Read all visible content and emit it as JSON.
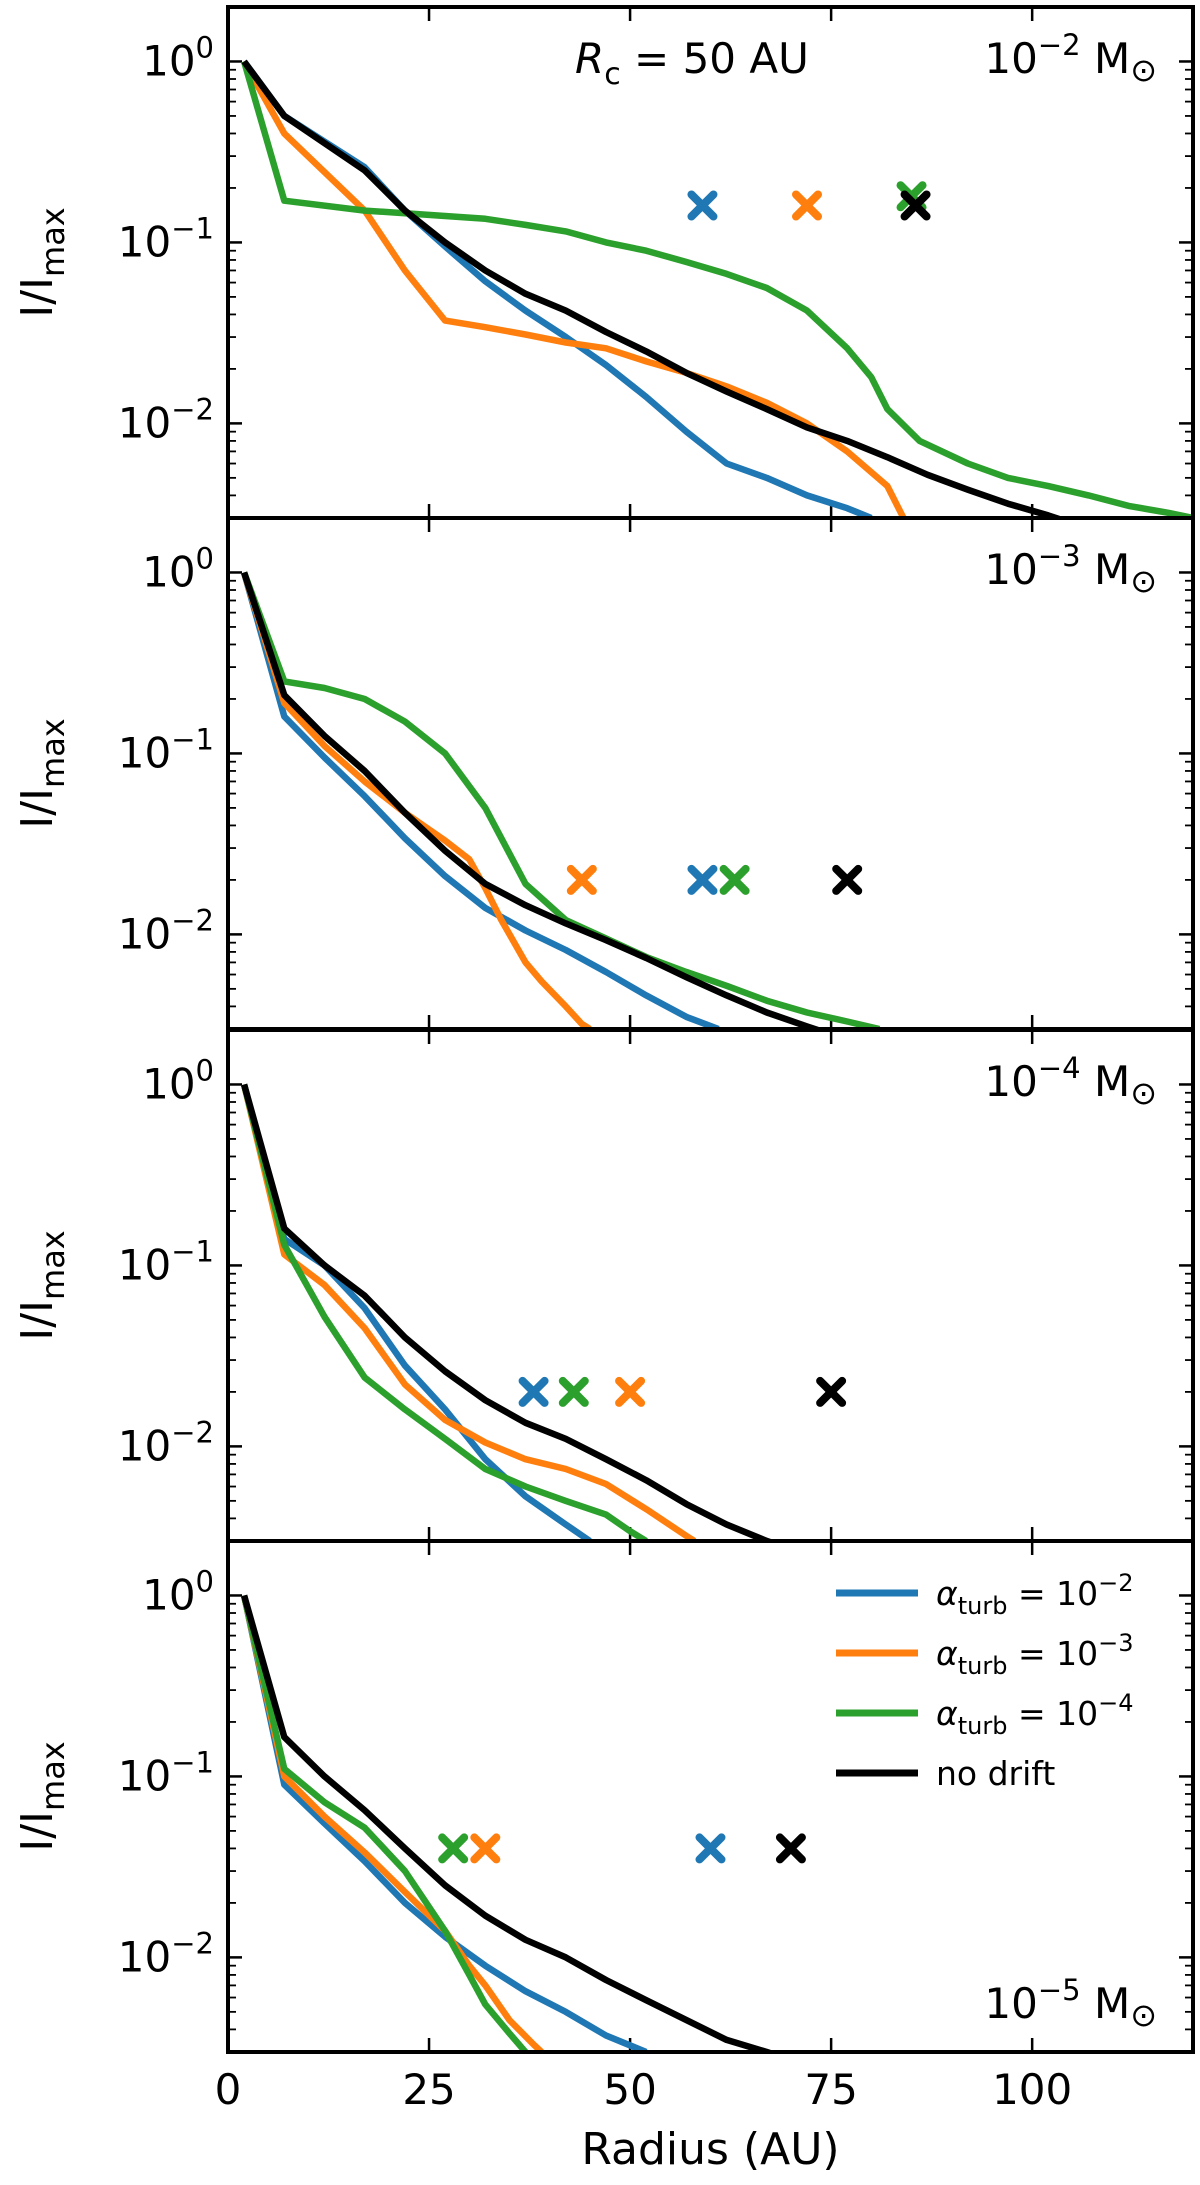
{
  "chart_data": {
    "type": "line",
    "shared_x": {
      "label": "Radius (AU)",
      "range": [
        0,
        120
      ],
      "ticks": [
        0,
        25,
        50,
        75,
        100
      ],
      "tick_labels": [
        "0",
        "25",
        "50",
        "75",
        "100"
      ]
    },
    "ylabel_main": "I/I",
    "ylabel_sub": "max",
    "yscale": "log",
    "ylim": [
      0.003,
      2
    ],
    "y_ticks": [
      {
        "value": 1,
        "base": "10",
        "exp": "0"
      },
      {
        "value": 0.1,
        "base": "10",
        "exp": "−1"
      },
      {
        "value": 0.01,
        "base": "10",
        "exp": "−2"
      }
    ],
    "annotation": {
      "prefix": "R",
      "sub": "c",
      "suffix": " = 50 AU"
    },
    "legend": {
      "location": "upper right (bottom panel)",
      "entries": [
        {
          "name_main": "α",
          "name_sub": "turb",
          "name_rest": " = 10",
          "name_sup": "−2",
          "color": "#1f77b4"
        },
        {
          "name_main": "α",
          "name_sub": "turb",
          "name_rest": " = 10",
          "name_sup": "−3",
          "color": "#ff7f0e"
        },
        {
          "name_main": "α",
          "name_sub": "turb",
          "name_rest": " = 10",
          "name_sup": "−4",
          "color": "#2ca02c"
        },
        {
          "name_main": "no drift",
          "name_sub": "",
          "name_rest": "",
          "name_sup": "",
          "color": "#000000"
        }
      ]
    },
    "panels": [
      {
        "mass_base": "10",
        "mass_exp": "−2",
        "mass_unit": " M",
        "mass_sym": "⊙",
        "label_location": "top-right",
        "series": [
          {
            "name": "alpha_turb = 1e-2",
            "color": "#1f77b4",
            "x": [
              2,
              7,
              17,
              22,
              27,
              32,
              37,
              42,
              47,
              52,
              57,
              62,
              67,
              72,
              77,
              80
            ],
            "y": [
              1,
              0.5,
              0.26,
              0.15,
              0.095,
              0.061,
              0.042,
              0.03,
              0.021,
              0.014,
              0.009,
              0.006,
              0.005,
              0.004,
              0.0034,
              0.003
            ]
          },
          {
            "name": "alpha_turb = 1e-3",
            "color": "#ff7f0e",
            "x": [
              2,
              7,
              17,
              22,
              27,
              32,
              37,
              42,
              47,
              52,
              57,
              62,
              67,
              72,
              77,
              82,
              84
            ],
            "y": [
              1,
              0.4,
              0.15,
              0.07,
              0.037,
              0.034,
              0.031,
              0.028,
              0.026,
              0.022,
              0.019,
              0.016,
              0.013,
              0.01,
              0.007,
              0.0045,
              0.003
            ]
          },
          {
            "name": "alpha_turb = 1e-4",
            "color": "#2ca02c",
            "x": [
              2,
              7,
              17,
              22,
              27,
              32,
              37,
              42,
              47,
              52,
              57,
              62,
              67,
              72,
              77,
              80,
              82,
              86,
              92,
              97,
              102,
              107,
              112,
              117,
              120
            ],
            "y": [
              1,
              0.17,
              0.15,
              0.145,
              0.14,
              0.135,
              0.125,
              0.115,
              0.1,
              0.09,
              0.078,
              0.067,
              0.056,
              0.042,
              0.026,
              0.018,
              0.012,
              0.008,
              0.006,
              0.005,
              0.0045,
              0.004,
              0.0035,
              0.0032,
              0.003
            ]
          },
          {
            "name": "no drift",
            "color": "#000000",
            "x": [
              2,
              7,
              17,
              22,
              27,
              32,
              37,
              42,
              47,
              52,
              57,
              62,
              67,
              72,
              77,
              82,
              87,
              92,
              97,
              102,
              105
            ],
            "y": [
              1,
              0.5,
              0.25,
              0.15,
              0.1,
              0.07,
              0.052,
              0.042,
              0.032,
              0.025,
              0.019,
              0.015,
              0.012,
              0.0095,
              0.008,
              0.0065,
              0.0052,
              0.0043,
              0.0036,
              0.0031,
              0.0028
            ]
          }
        ],
        "markers": [
          {
            "x": 59,
            "y": 0.16,
            "color": "#1f77b4"
          },
          {
            "x": 72,
            "y": 0.16,
            "color": "#ff7f0e"
          },
          {
            "x": 85,
            "y": 0.18,
            "color": "#2ca02c"
          },
          {
            "x": 85.5,
            "y": 0.16,
            "color": "#000000"
          }
        ]
      },
      {
        "mass_base": "10",
        "mass_exp": "−3",
        "mass_unit": " M",
        "mass_sym": "⊙",
        "label_location": "top-right",
        "series": [
          {
            "name": "alpha_turb = 1e-2",
            "color": "#1f77b4",
            "x": [
              2,
              7,
              12,
              17,
              22,
              27,
              32,
              37,
              42,
              47,
              52,
              57,
              61
            ],
            "y": [
              1,
              0.16,
              0.095,
              0.058,
              0.034,
              0.021,
              0.014,
              0.0105,
              0.0082,
              0.0062,
              0.0046,
              0.0035,
              0.003
            ]
          },
          {
            "name": "alpha_turb = 1e-3",
            "color": "#ff7f0e",
            "x": [
              2,
              7,
              12,
              17,
              22,
              27,
              30,
              32,
              34,
              37,
              39,
              42,
              44,
              45
            ],
            "y": [
              1,
              0.19,
              0.11,
              0.07,
              0.047,
              0.033,
              0.026,
              0.018,
              0.012,
              0.007,
              0.0055,
              0.004,
              0.0032,
              0.003
            ]
          },
          {
            "name": "alpha_turb = 1e-4",
            "color": "#2ca02c",
            "x": [
              2,
              7,
              12,
              17,
              22,
              27,
              32,
              37,
              42,
              47,
              52,
              57,
              62,
              67,
              72,
              77,
              81
            ],
            "y": [
              1,
              0.25,
              0.23,
              0.2,
              0.15,
              0.1,
              0.05,
              0.019,
              0.012,
              0.0095,
              0.0075,
              0.0062,
              0.0052,
              0.0043,
              0.0037,
              0.0033,
              0.003
            ]
          },
          {
            "name": "no drift",
            "color": "#000000",
            "x": [
              2,
              7,
              12,
              17,
              22,
              27,
              32,
              37,
              42,
              47,
              52,
              57,
              62,
              67,
              72,
              75
            ],
            "y": [
              1,
              0.21,
              0.125,
              0.08,
              0.047,
              0.029,
              0.019,
              0.0145,
              0.0115,
              0.0093,
              0.0074,
              0.0058,
              0.0046,
              0.0037,
              0.0031,
              0.0028
            ]
          }
        ],
        "markers": [
          {
            "x": 44,
            "y": 0.02,
            "color": "#ff7f0e"
          },
          {
            "x": 59,
            "y": 0.02,
            "color": "#1f77b4"
          },
          {
            "x": 63,
            "y": 0.02,
            "color": "#2ca02c"
          },
          {
            "x": 77,
            "y": 0.02,
            "color": "#000000"
          }
        ]
      },
      {
        "mass_base": "10",
        "mass_exp": "−4",
        "mass_unit": " M",
        "mass_sym": "⊙",
        "label_location": "top-right",
        "series": [
          {
            "name": "alpha_turb = 1e-2",
            "color": "#1f77b4",
            "x": [
              2,
              7,
              12,
              17,
              22,
              27,
              32,
              37,
              42,
              45
            ],
            "y": [
              1,
              0.14,
              0.1,
              0.058,
              0.028,
              0.016,
              0.0085,
              0.0053,
              0.0037,
              0.003
            ]
          },
          {
            "name": "alpha_turb = 1e-3",
            "color": "#ff7f0e",
            "x": [
              2,
              7,
              12,
              17,
              22,
              27,
              32,
              37,
              42,
              47,
              52,
              57,
              58
            ],
            "y": [
              1,
              0.115,
              0.078,
              0.045,
              0.022,
              0.014,
              0.0105,
              0.0085,
              0.0075,
              0.0062,
              0.0045,
              0.0032,
              0.003
            ]
          },
          {
            "name": "alpha_turb = 1e-4",
            "color": "#2ca02c",
            "x": [
              2,
              7,
              12,
              17,
              22,
              27,
              32,
              37,
              42,
              47,
              50,
              52
            ],
            "y": [
              1,
              0.13,
              0.052,
              0.024,
              0.016,
              0.011,
              0.0075,
              0.006,
              0.005,
              0.0042,
              0.0034,
              0.003
            ]
          },
          {
            "name": "no drift",
            "color": "#000000",
            "x": [
              2,
              7,
              12,
              17,
              22,
              27,
              32,
              37,
              42,
              47,
              52,
              57,
              62,
              67,
              69
            ],
            "y": [
              1,
              0.16,
              0.1,
              0.068,
              0.04,
              0.026,
              0.018,
              0.0135,
              0.011,
              0.0085,
              0.0065,
              0.0048,
              0.0037,
              0.003,
              0.0028
            ]
          }
        ],
        "markers": [
          {
            "x": 38,
            "y": 0.02,
            "color": "#1f77b4"
          },
          {
            "x": 43,
            "y": 0.02,
            "color": "#2ca02c"
          },
          {
            "x": 50,
            "y": 0.02,
            "color": "#ff7f0e"
          },
          {
            "x": 75,
            "y": 0.02,
            "color": "#000000"
          }
        ]
      },
      {
        "mass_base": "10",
        "mass_exp": "−5",
        "mass_unit": " M",
        "mass_sym": "⊙",
        "label_location": "bottom-right",
        "series": [
          {
            "name": "alpha_turb = 1e-2",
            "color": "#1f77b4",
            "x": [
              2,
              7,
              12,
              17,
              22,
              27,
              32,
              37,
              42,
              47,
              52
            ],
            "y": [
              1,
              0.09,
              0.055,
              0.034,
              0.02,
              0.013,
              0.009,
              0.0065,
              0.005,
              0.0037,
              0.003
            ]
          },
          {
            "name": "alpha_turb = 1e-3",
            "color": "#ff7f0e",
            "x": [
              2,
              7,
              12,
              17,
              22,
              27,
              30,
              32,
              35,
              38,
              39
            ],
            "y": [
              1,
              0.1,
              0.06,
              0.038,
              0.023,
              0.014,
              0.009,
              0.007,
              0.0045,
              0.0033,
              0.003
            ]
          },
          {
            "name": "alpha_turb = 1e-4",
            "color": "#2ca02c",
            "x": [
              2,
              7,
              12,
              17,
              22,
              27,
              30,
              32,
              35,
              37
            ],
            "y": [
              1,
              0.11,
              0.072,
              0.052,
              0.03,
              0.014,
              0.008,
              0.0055,
              0.0038,
              0.003
            ]
          },
          {
            "name": "no drift",
            "color": "#000000",
            "x": [
              2,
              7,
              12,
              17,
              22,
              27,
              32,
              37,
              42,
              47,
              52,
              57,
              62,
              67,
              69
            ],
            "y": [
              1,
              0.165,
              0.1,
              0.065,
              0.04,
              0.025,
              0.017,
              0.0125,
              0.01,
              0.0075,
              0.0058,
              0.0045,
              0.0035,
              0.003,
              0.0028
            ]
          }
        ],
        "markers": [
          {
            "x": 28,
            "y": 0.04,
            "color": "#2ca02c"
          },
          {
            "x": 32,
            "y": 0.04,
            "color": "#ff7f0e"
          },
          {
            "x": 60,
            "y": 0.04,
            "color": "#1f77b4"
          },
          {
            "x": 70,
            "y": 0.04,
            "color": "#000000"
          }
        ]
      }
    ]
  }
}
